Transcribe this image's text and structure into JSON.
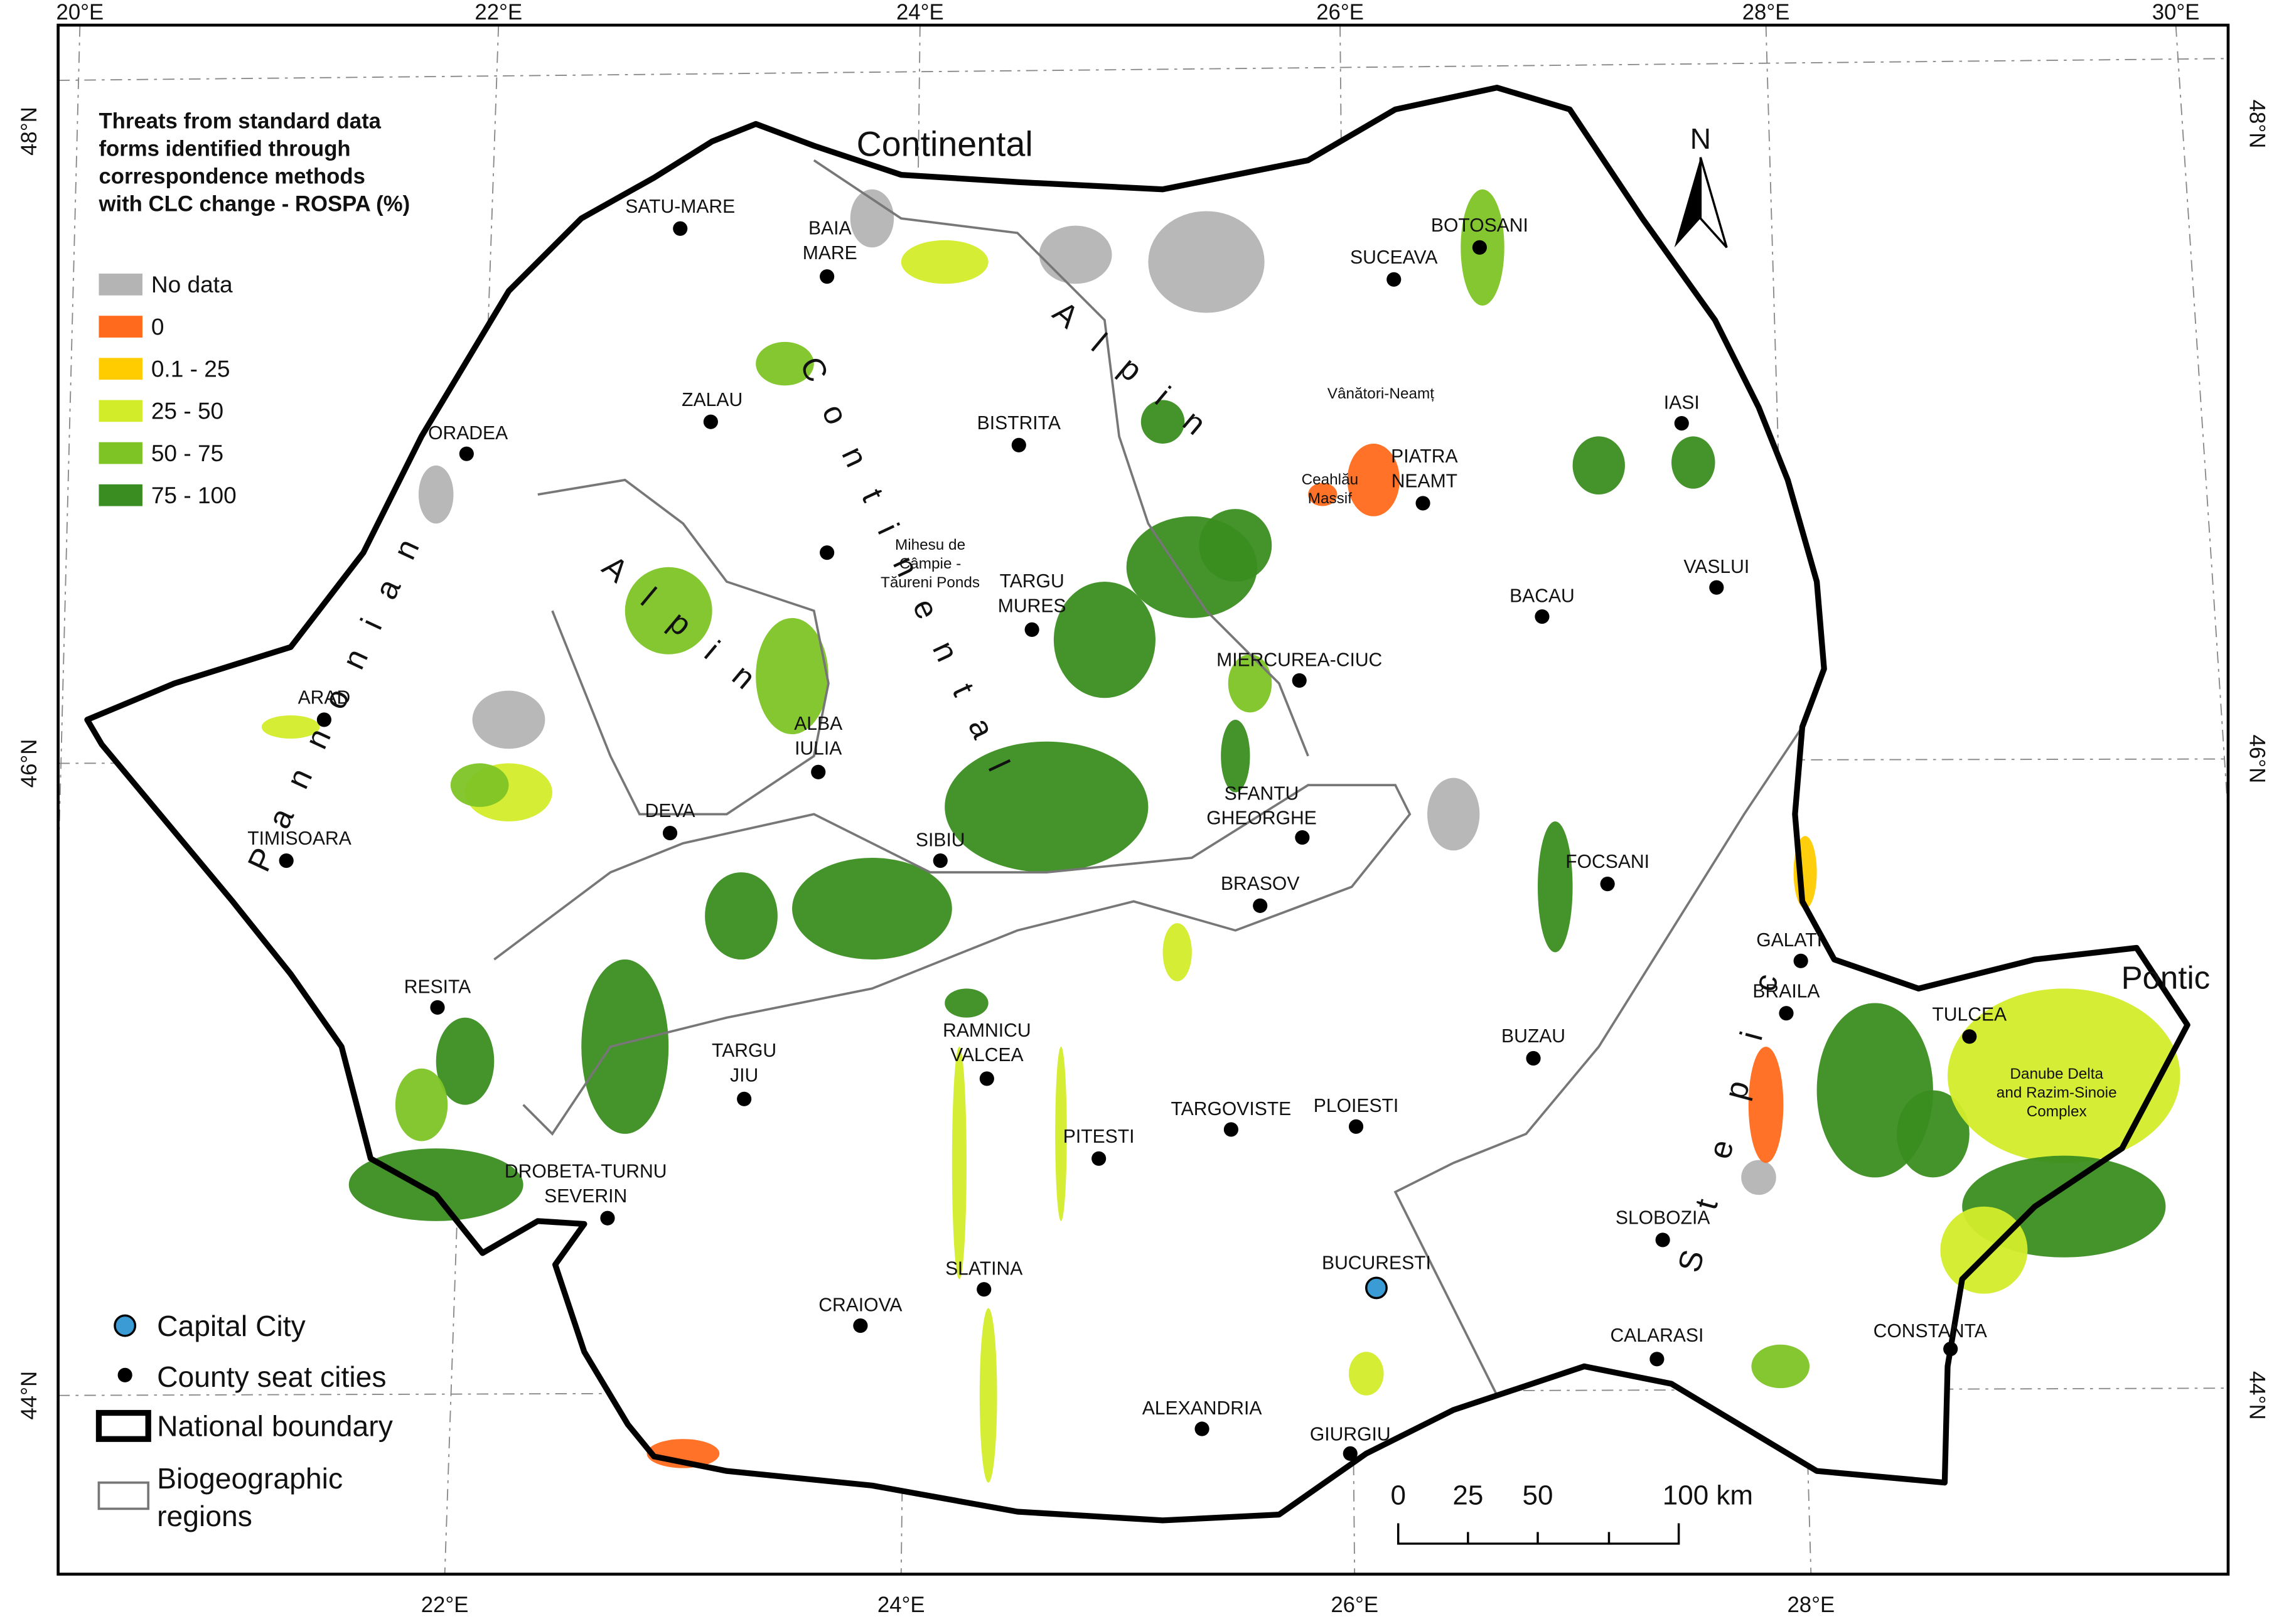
{
  "map": {
    "legend": {
      "title": [
        "Threats from standard data",
        "forms identified through",
        "correspondence methods",
        "with CLC change - ROSPA (%)"
      ],
      "classes": [
        {
          "label": "No data",
          "color": "#b4b4b4"
        },
        {
          "label": "0",
          "color": "#ff6a1c"
        },
        {
          "label": "0.1 - 25",
          "color": "#ffcc00"
        },
        {
          "label": "25 - 50",
          "color": "#d3ec2a"
        },
        {
          "label": "50 - 75",
          "color": "#7ec425"
        },
        {
          "label": "75 - 100",
          "color": "#3a8d20"
        }
      ]
    },
    "symbol_legend": {
      "capital": "Capital City",
      "county_seat": "County seat cities",
      "boundary": "National boundary",
      "regions": [
        "Biogeographic",
        "regions"
      ]
    },
    "graticule": {
      "top": [
        "20°E",
        "22°E",
        "24°E",
        "26°E",
        "28°E",
        "30°E"
      ],
      "bottom": [
        "22°E",
        "24°E",
        "26°E",
        "28°E"
      ],
      "left": [
        "48°N",
        "46°N",
        "44°N"
      ],
      "right": [
        "48°N",
        "46°N",
        "44°N"
      ]
    },
    "regions": [
      "Continental",
      "Continental",
      "Alpin",
      "Alpin",
      "Pannonian",
      "Stepic",
      "Pontic"
    ],
    "capital": [
      "BUCURESTI"
    ],
    "cities": [
      [
        "SATU-MARE"
      ],
      [
        "BAIA",
        "MARE"
      ],
      [
        "ZALAU"
      ],
      [
        "ORADEA"
      ],
      [
        "BISTRITA"
      ],
      [
        "TARGU",
        "MURES"
      ],
      [
        "ALBA",
        "IULIA"
      ],
      [
        "ARAD"
      ],
      [
        "DEVA"
      ],
      [
        "TIMISOARA"
      ],
      [
        "SIBIU"
      ],
      [
        "RESITA"
      ],
      [
        "TARGU",
        "JIU"
      ],
      [
        "RAMNICU",
        "VALCEA"
      ],
      [
        "DROBETA-TURNU",
        "SEVERIN"
      ],
      [
        "PITESTI"
      ],
      [
        "TARGOVISTE"
      ],
      [
        "PLOIESTI"
      ],
      [
        "SLATINA"
      ],
      [
        "CRAIOVA"
      ],
      [
        "ALEXANDRIA"
      ],
      [
        "GIURGIU"
      ],
      [
        "SLOBOZIA"
      ],
      [
        "CALARASI"
      ],
      [
        "CONSTANTA"
      ],
      [
        "BUZAU"
      ],
      [
        "BRAILA"
      ],
      [
        "GALATI"
      ],
      [
        "TULCEA"
      ],
      [
        "FOCSANI"
      ],
      [
        "BRASOV"
      ],
      [
        "SFANTU",
        "GHEORGHE"
      ],
      [
        "MIERCUREA-CIUC"
      ],
      [
        "BACAU"
      ],
      [
        "VASLUI"
      ],
      [
        "IASI"
      ],
      [
        "PIATRA",
        "NEAMT"
      ],
      [
        "SUCEAVA"
      ],
      [
        "BOTOSANI"
      ]
    ],
    "protected_areas": [
      [
        "Vânători-Neamț"
      ],
      [
        "Ceahlău",
        "Massif"
      ],
      [
        "Mihesu de",
        "Câmpie -",
        "Tăureni Ponds"
      ],
      [
        "Danube Delta",
        "and Razim-Sinoie",
        "Complex"
      ]
    ],
    "north": "N",
    "scale_bar": [
      "0",
      "25",
      "50",
      "100 km"
    ]
  }
}
